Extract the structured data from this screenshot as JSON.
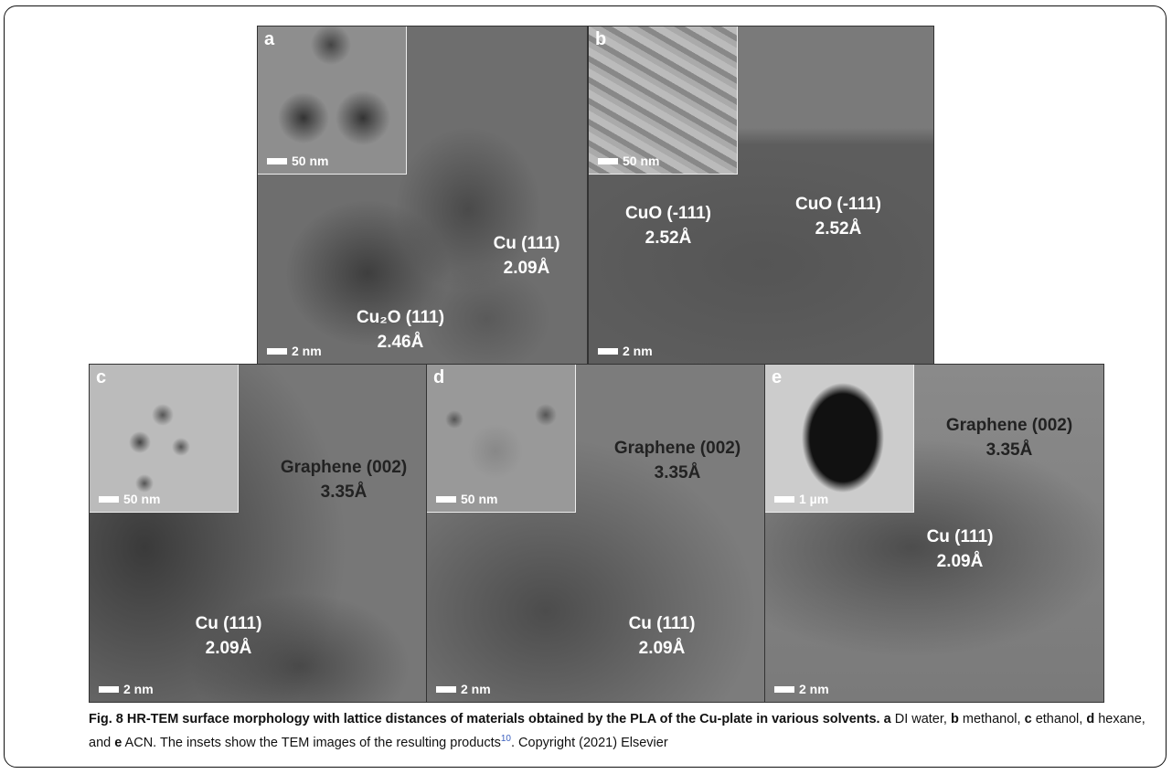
{
  "panels": [
    {
      "letter": "a",
      "inset_scale": "50 nm",
      "scale": "2 nm",
      "annotations": [
        {
          "label": "Cu₂O (111)",
          "distance": "2.46Å"
        },
        {
          "label": "Cu (111)",
          "distance": "2.09Å"
        }
      ]
    },
    {
      "letter": "b",
      "inset_scale": "50 nm",
      "scale": "2 nm",
      "annotations": [
        {
          "label": "CuO (-111)",
          "distance": "2.52Å"
        },
        {
          "label": "CuO (-111)",
          "distance": "2.52Å"
        }
      ]
    },
    {
      "letter": "c",
      "inset_scale": "50 nm",
      "scale": "2 nm",
      "annotations": [
        {
          "label": "Graphene (002)",
          "distance": "3.35Å"
        },
        {
          "label": "Cu (111)",
          "distance": "2.09Å"
        }
      ]
    },
    {
      "letter": "d",
      "inset_scale": "50 nm",
      "scale": "2 nm",
      "annotations": [
        {
          "label": "Graphene (002)",
          "distance": "3.35Å"
        },
        {
          "label": "Cu (111)",
          "distance": "2.09Å"
        }
      ]
    },
    {
      "letter": "e",
      "inset_scale": "1 µm",
      "scale": "2 nm",
      "annotations": [
        {
          "label": "Graphene (002)",
          "distance": "3.35Å"
        },
        {
          "label": "Cu (111)",
          "distance": "2.09Å"
        }
      ]
    }
  ],
  "caption": {
    "title": "Fig. 8 HR-TEM surface morphology with lattice distances of materials obtained by the PLA of the Cu-plate in various solvents.",
    "items": [
      {
        "letter": "a",
        "text": "DI water,"
      },
      {
        "letter": "b",
        "text": "methanol,"
      },
      {
        "letter": "c",
        "text": "ethanol,"
      },
      {
        "letter": "d",
        "text": "hexane, and"
      },
      {
        "letter": "e",
        "text": "ACN."
      }
    ],
    "note": "The insets show the TEM images of the resulting products",
    "ref": "10",
    "copyright": ". Copyright (2021) Elsevier"
  }
}
